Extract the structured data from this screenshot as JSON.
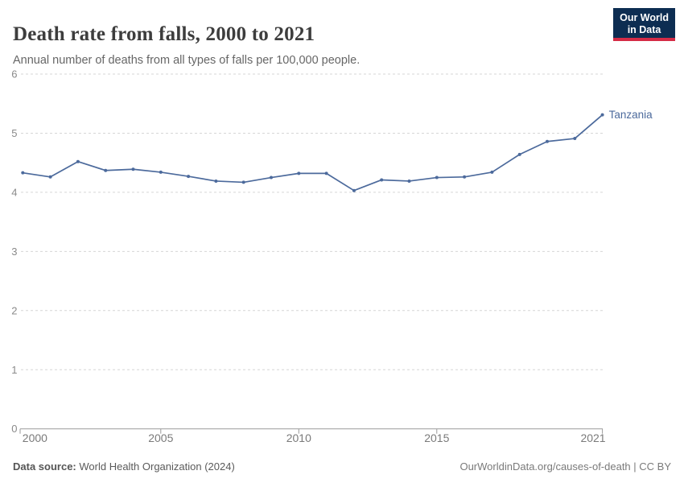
{
  "header": {
    "title": "Death rate from falls, 2000 to 2021",
    "subtitle": "Annual number of deaths from all types of falls per 100,000 people.",
    "logo": {
      "line1": "Our World",
      "line2": "in Data"
    }
  },
  "chart_data": {
    "type": "line",
    "title": "Death rate from falls, 2000 to 2021",
    "subtitle": "Annual number of deaths from all types of falls per 100,000 people.",
    "x": [
      2000,
      2001,
      2002,
      2003,
      2004,
      2005,
      2006,
      2007,
      2008,
      2009,
      2010,
      2011,
      2012,
      2013,
      2014,
      2015,
      2016,
      2017,
      2018,
      2019,
      2020,
      2021
    ],
    "series": [
      {
        "name": "Tanzania",
        "color": "#4c6a9c",
        "values": [
          4.33,
          4.26,
          4.52,
          4.37,
          4.39,
          4.34,
          4.27,
          4.19,
          4.17,
          4.25,
          4.32,
          4.32,
          4.03,
          4.21,
          4.19,
          4.25,
          4.26,
          4.34,
          4.64,
          4.86,
          4.91,
          5.31
        ]
      }
    ],
    "xlabel": "",
    "ylabel": "",
    "ylim": [
      0,
      6
    ],
    "y_ticks": [
      0,
      1,
      2,
      3,
      4,
      5,
      6
    ],
    "x_tick_labels": [
      2000,
      2005,
      2010,
      2015,
      2021
    ],
    "grid": "horizontal-dashed",
    "legend_position": "end-of-line-label",
    "end_label": "Tanzania"
  },
  "footer": {
    "source_label": "Data source:",
    "source_value": "World Health Organization (2024)",
    "credit": "OurWorldinData.org/causes-of-death | CC BY"
  },
  "colors": {
    "line": "#4c6a9c",
    "gridline": "#d6d6d6",
    "axis": "#9a9a9a",
    "y_tick_label": "#8a8a8a",
    "x_tick_label": "#7a7a7a",
    "title": "#3d3d3d",
    "subtitle": "#666666",
    "logo_bg": "#0d2d52",
    "logo_red": "#d52b46"
  }
}
